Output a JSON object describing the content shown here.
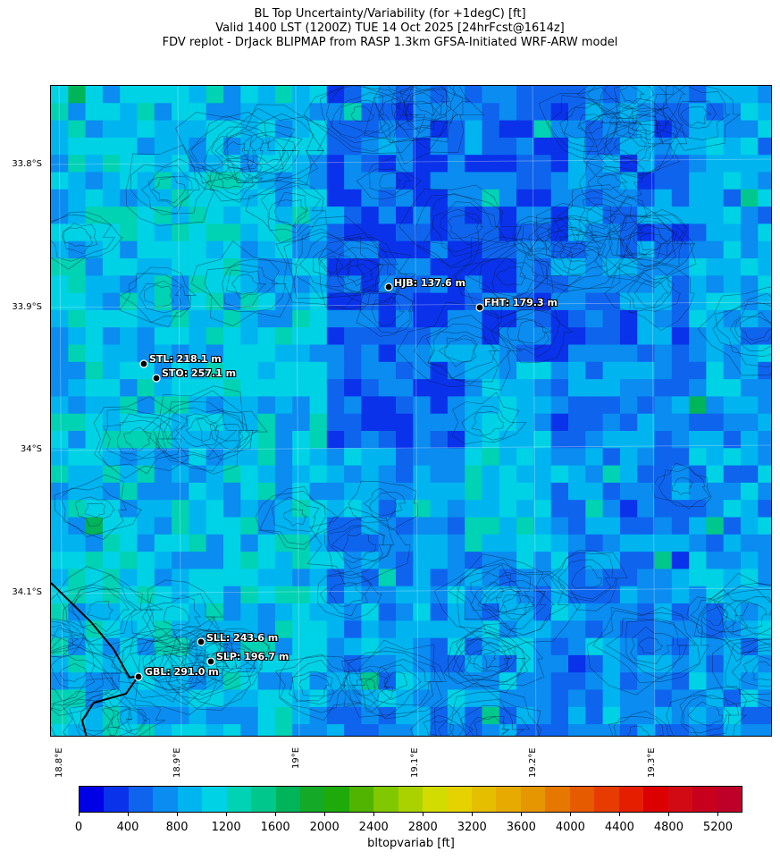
{
  "title": {
    "line1": "BL Top Uncertainty/Variability (for +1degC) [ft]",
    "line2": "Valid 1400 LST (1200Z) TUE 14 Oct 2025 [24hrFcst@1614z]",
    "line3": "FDV replot - DrJack BLIPMAP from RASP 1.3km GFSA-Initiated WRF-ARW model"
  },
  "map": {
    "lat_ticks": [
      "33.8°S",
      "33.9°S",
      "34°S",
      "34.1°S"
    ],
    "lon_ticks": [
      "18.8°E",
      "18.9°E",
      "19°E",
      "19.1°E",
      "19.2°E",
      "19.3°E"
    ],
    "stations": [
      {
        "code": "HJB",
        "label": "HJB: 137.6 m"
      },
      {
        "code": "FHT",
        "label": "FHT: 179.3 m"
      },
      {
        "code": "STL",
        "label": "STL: 218.1 m"
      },
      {
        "code": "STO",
        "label": "STO: 257.1 m"
      },
      {
        "code": "SLL",
        "label": "SLL: 243.6 m"
      },
      {
        "code": "SLP",
        "label": "SLP: 196.7 m"
      },
      {
        "code": "GBL",
        "label": "GBL: 291.0 m"
      }
    ]
  },
  "colorbar": {
    "label": "bltopvariab [ft]",
    "ticks": [
      "0",
      "400",
      "800",
      "1200",
      "1600",
      "2000",
      "2400",
      "2800",
      "3200",
      "3600",
      "4000",
      "4400",
      "4800",
      "5200"
    ],
    "range": [
      0,
      5400
    ],
    "colors": [
      "#0000e6",
      "#0a32ea",
      "#0f64ee",
      "#0a8cf0",
      "#00b4f0",
      "#00d2e6",
      "#00d2b4",
      "#00c88c",
      "#00b45a",
      "#14aa28",
      "#1eaa0a",
      "#50b400",
      "#82c800",
      "#aad200",
      "#d2dc00",
      "#e6d200",
      "#e6be00",
      "#e6aa00",
      "#e69600",
      "#e67800",
      "#e65a00",
      "#e63c00",
      "#e61e00",
      "#dc0000",
      "#d20a14",
      "#c8001e",
      "#be0028"
    ]
  }
}
